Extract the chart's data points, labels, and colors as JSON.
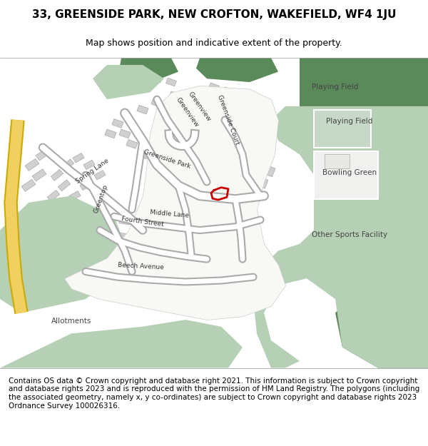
{
  "title": "33, GREENSIDE PARK, NEW CROFTON, WAKEFIELD, WF4 1JU",
  "subtitle": "Map shows position and indicative extent of the property.",
  "footer": "Contains OS data © Crown copyright and database right 2021. This information is subject to Crown copyright and database rights 2023 and is reproduced with the permission of HM Land Registry. The polygons (including the associated geometry, namely x, y co-ordinates) are subject to Crown copyright and database rights 2023 Ordnance Survey 100026316.",
  "bg_color": "#ffffff",
  "map_bg": "#f5f5f0",
  "road_color": "#ffffff",
  "road_outline": "#cccccc",
  "building_color": "#d9d9d9",
  "building_outline": "#bbbbbb",
  "green_dark": "#5a8a5a",
  "green_light": "#b5d0b5",
  "green_mid": "#7aaa7a",
  "yellow_road": "#f0d060",
  "red_outline": "#cc0000",
  "title_fontsize": 11,
  "subtitle_fontsize": 9,
  "footer_fontsize": 7.5
}
